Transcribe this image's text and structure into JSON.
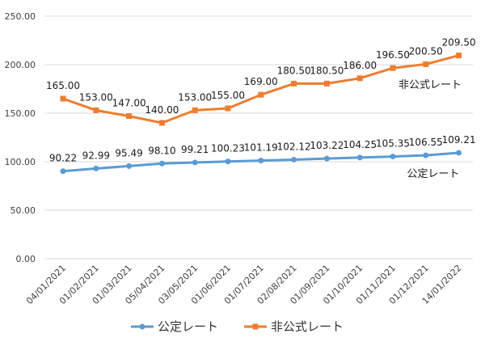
{
  "chart_data": {
    "type": "line",
    "categories": [
      "04/01/2021",
      "01/02/2021",
      "01/03/2021",
      "05/04/2021",
      "03/05/2021",
      "01/06/2021",
      "01/07/2021",
      "02/08/2021",
      "01/09/2021",
      "01/10/2021",
      "01/11/2021",
      "01/12/2021",
      "14/01/2022"
    ],
    "y_ticks": [
      "0.00",
      "50.00",
      "100.00",
      "150.00",
      "200.00",
      "250.00"
    ],
    "ylim": [
      0,
      250
    ],
    "grid": true,
    "legend_position": "bottom",
    "series": [
      {
        "name": "公定レート",
        "color": "#5B9BD5",
        "marker": "circle",
        "values": [
          90.22,
          92.99,
          95.49,
          98.1,
          99.21,
          100.23,
          101.19,
          102.12,
          103.22,
          104.25,
          105.35,
          106.55,
          109.21
        ],
        "labels": [
          "90.22",
          "92.99",
          "95.49",
          "98.10",
          "99.21",
          "100.23",
          "101.19",
          "102.12",
          "103.22",
          "104.25",
          "105.35",
          "106.55",
          "109.21"
        ]
      },
      {
        "name": "非公式レート",
        "color": "#ED7D31",
        "marker": "square",
        "values": [
          165.0,
          153.0,
          147.0,
          140.0,
          153.0,
          155.0,
          169.0,
          180.5,
          180.5,
          186.0,
          196.5,
          200.5,
          209.5
        ],
        "labels": [
          "165.00",
          "153.00",
          "147.00",
          "140.00",
          "153.00",
          "155.00",
          "169.00",
          "180.50",
          "180.50",
          "186.00",
          "196.50",
          "200.50",
          "209.50"
        ]
      }
    ]
  }
}
